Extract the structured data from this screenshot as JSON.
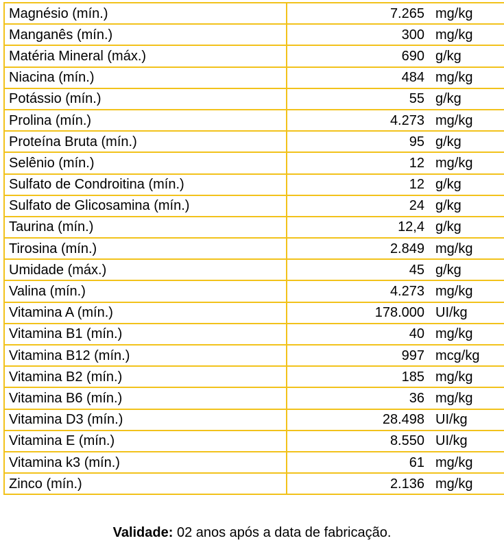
{
  "table": {
    "rows": [
      {
        "name": "Magnésio (mín.)",
        "value": "7.265",
        "unit": "mg/kg"
      },
      {
        "name": "Manganês (mín.)",
        "value": "300",
        "unit": "mg/kg"
      },
      {
        "name": "Matéria Mineral (máx.)",
        "value": "690",
        "unit": "g/kg"
      },
      {
        "name": "Niacina (mín.)",
        "value": "484",
        "unit": "mg/kg"
      },
      {
        "name": "Potássio (mín.)",
        "value": "55",
        "unit": "g/kg"
      },
      {
        "name": "Prolina (mín.)",
        "value": "4.273",
        "unit": "mg/kg"
      },
      {
        "name": "Proteína Bruta (mín.)",
        "value": "95",
        "unit": "g/kg"
      },
      {
        "name": "Selênio (mín.)",
        "value": "12",
        "unit": "mg/kg"
      },
      {
        "name": "Sulfato de Condroitina (mín.)",
        "value": "12",
        "unit": "g/kg"
      },
      {
        "name": "Sulfato de Glicosamina (mín.)",
        "value": "24",
        "unit": "g/kg"
      },
      {
        "name": "Taurina (mín.)",
        "value": "12,4",
        "unit": "g/kg"
      },
      {
        "name": "Tirosina (mín.)",
        "value": "2.849",
        "unit": "mg/kg"
      },
      {
        "name": "Umidade (máx.)",
        "value": "45",
        "unit": "g/kg"
      },
      {
        "name": "Valina (mín.)",
        "value": "4.273",
        "unit": "mg/kg"
      },
      {
        "name": "Vitamina A (mín.)",
        "value": "178.000",
        "unit": "UI/kg"
      },
      {
        "name": "Vitamina B1 (mín.)",
        "value": "40",
        "unit": "mg/kg"
      },
      {
        "name": "Vitamina B12 (mín.)",
        "value": "997",
        "unit": "mcg/kg"
      },
      {
        "name": "Vitamina B2 (mín.)",
        "value": "185",
        "unit": "mg/kg"
      },
      {
        "name": "Vitamina B6 (mín.)",
        "value": "36",
        "unit": "mg/kg"
      },
      {
        "name": "Vitamina D3 (mín.)",
        "value": "28.498",
        "unit": "UI/kg"
      },
      {
        "name": "Vitamina E (mín.)",
        "value": "8.550",
        "unit": "UI/kg"
      },
      {
        "name": "Vitamina k3 (mín.)",
        "value": "61",
        "unit": "mg/kg"
      },
      {
        "name": "Zinco (mín.)",
        "value": "2.136",
        "unit": "mg/kg"
      }
    ]
  },
  "footer": {
    "label": "Validade:",
    "text": " 02 anos após a data de fabricação."
  },
  "colors": {
    "border": "#F2C21B",
    "text": "#000000",
    "background": "#FFFFFF"
  }
}
